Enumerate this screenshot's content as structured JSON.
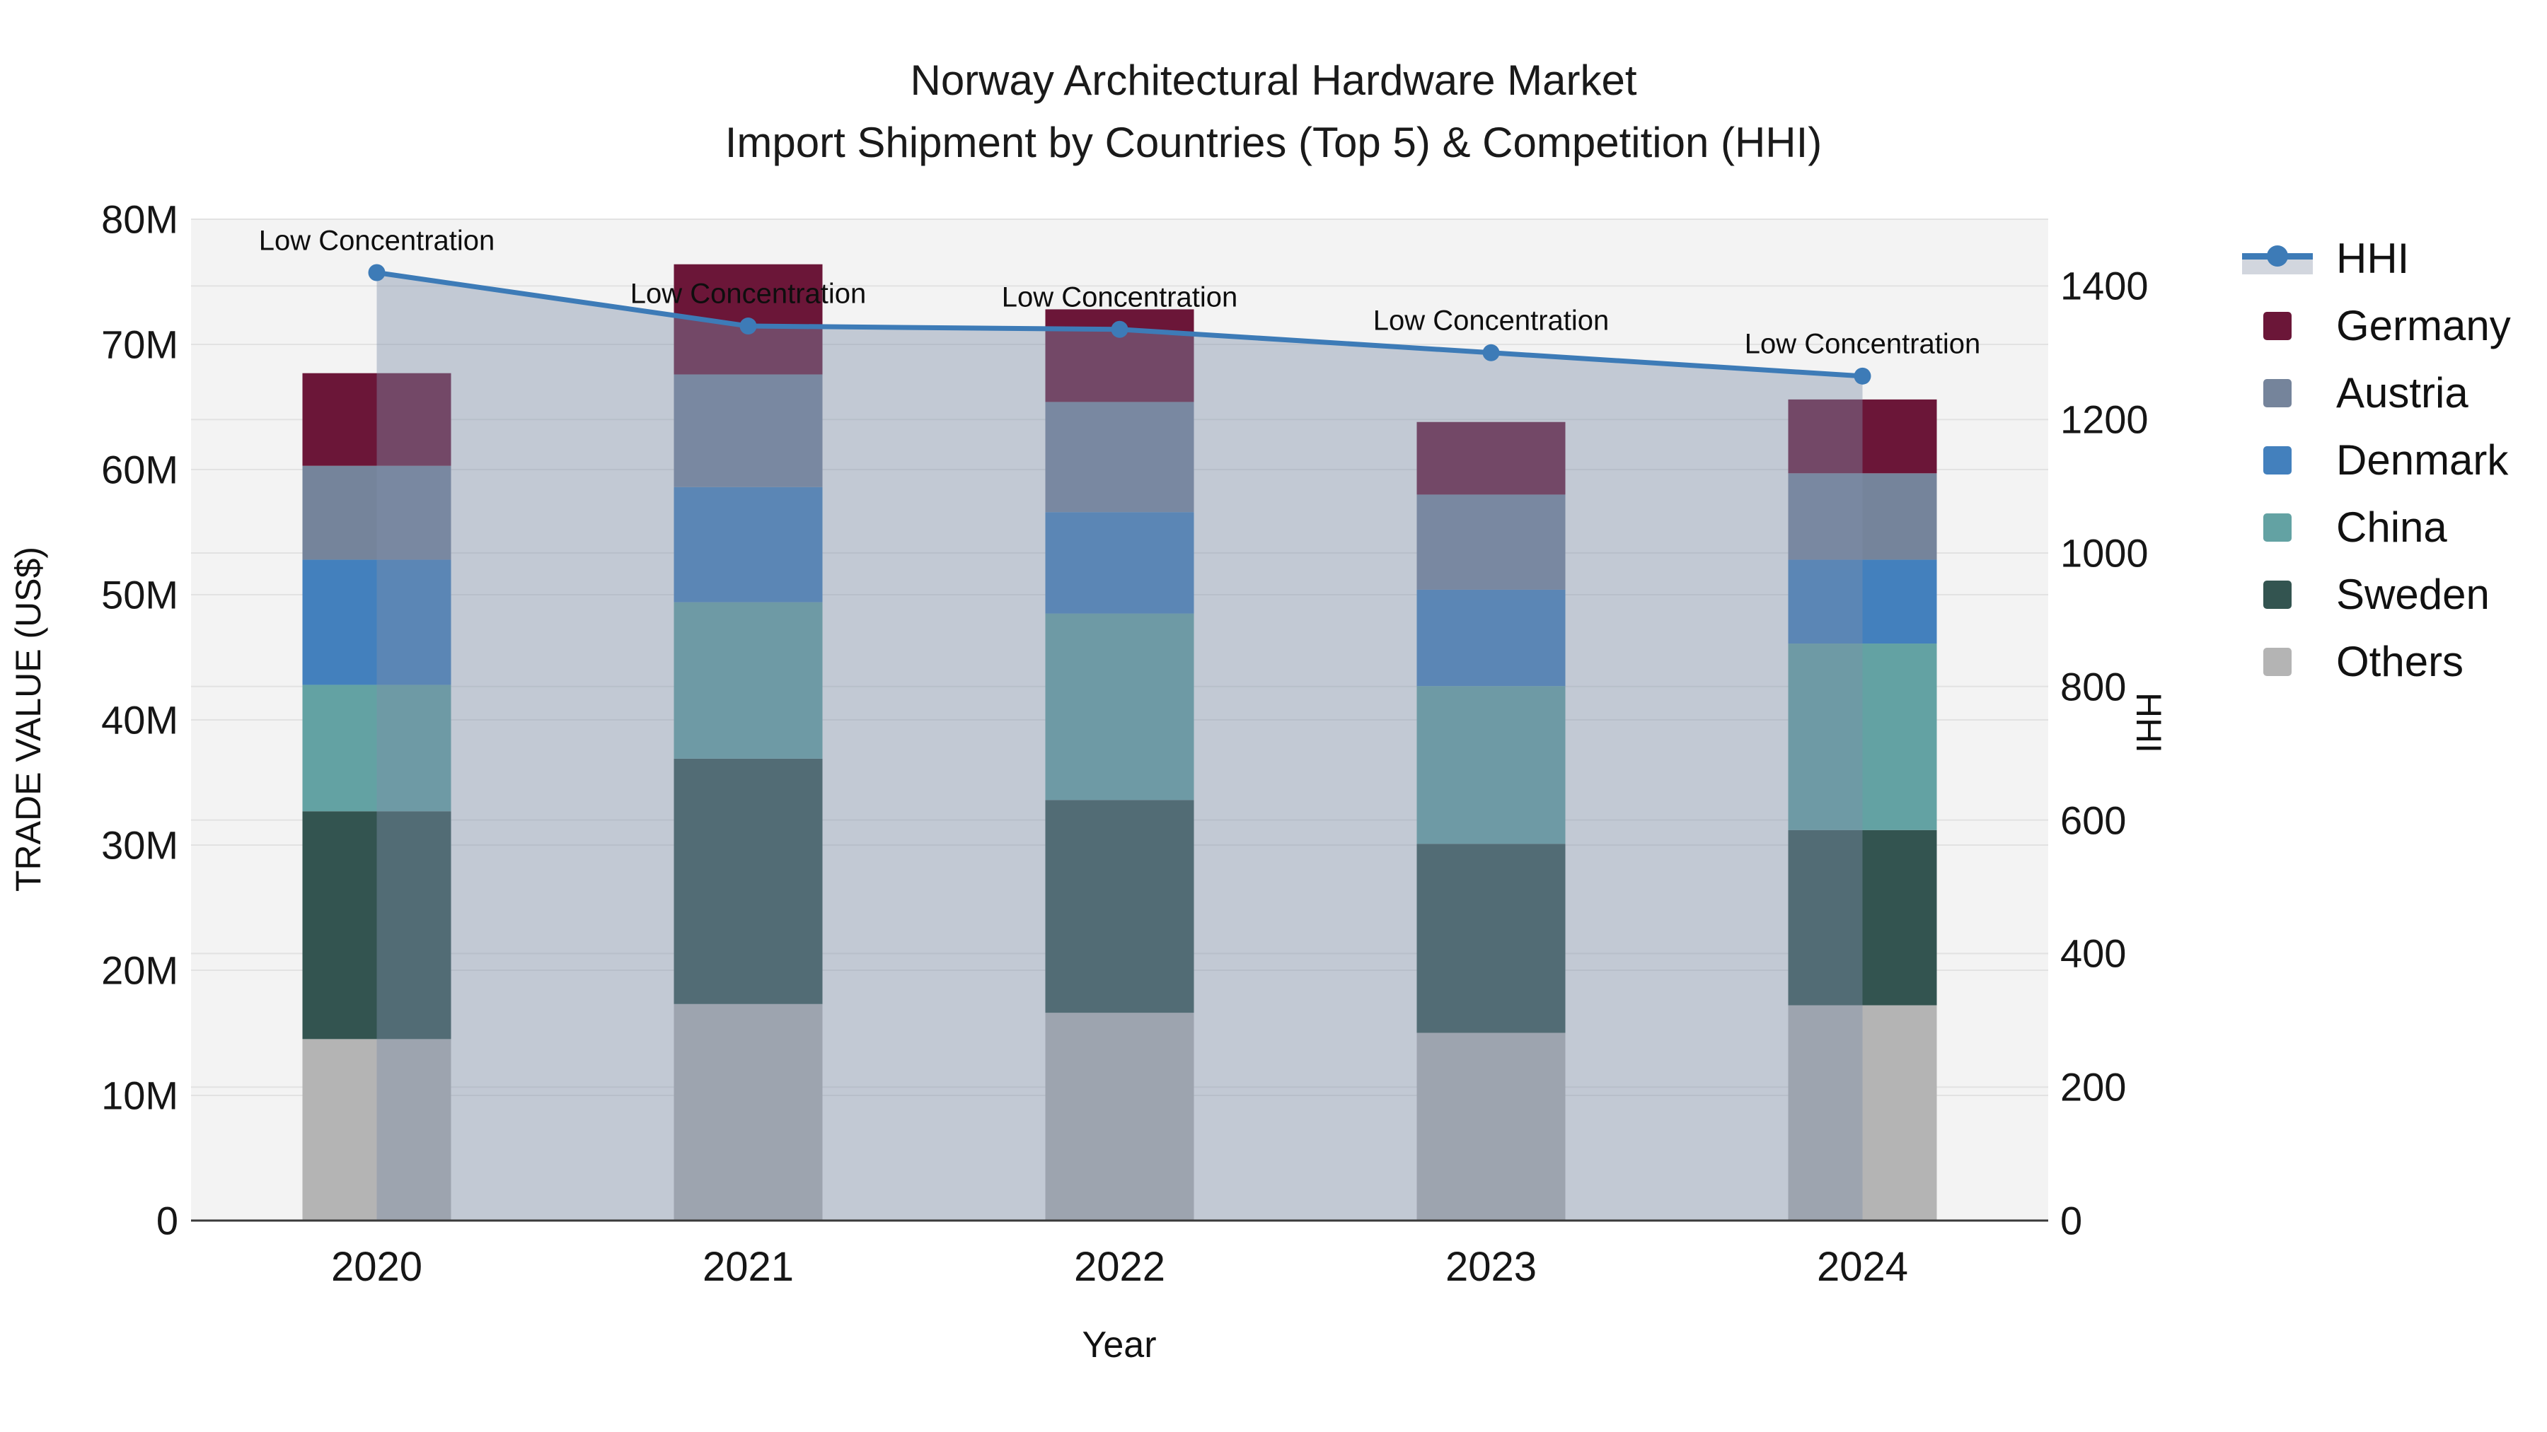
{
  "title": {
    "line1": "Norway Architectural Hardware Market",
    "line2": "Import Shipment by Countries (Top 5) & Competition (HHI)"
  },
  "axes": {
    "y_left": {
      "title": "TRADE VALUE (US$)",
      "ticks": [
        "0",
        "10M",
        "20M",
        "30M",
        "40M",
        "50M",
        "60M",
        "70M",
        "80M"
      ],
      "range": [
        0,
        80
      ]
    },
    "y_right": {
      "title": "HHI",
      "ticks": [
        "0",
        "200",
        "400",
        "600",
        "800",
        "1000",
        "1200",
        "1400"
      ],
      "range": [
        0,
        1500
      ]
    },
    "x": {
      "title": "Year"
    }
  },
  "chart_data": {
    "type": "stacked-bar+line",
    "categories": [
      "2020",
      "2021",
      "2022",
      "2023",
      "2024"
    ],
    "value_unit": "M US$ (trade value, left axis)",
    "series": [
      {
        "name": "Others",
        "values": [
          14.5,
          17.3,
          16.6,
          15.0,
          17.2
        ]
      },
      {
        "name": "Sweden",
        "values": [
          18.2,
          19.6,
          17.0,
          15.1,
          14.0
        ]
      },
      {
        "name": "China",
        "values": [
          10.1,
          12.5,
          14.9,
          12.6,
          14.9
        ]
      },
      {
        "name": "Denmark",
        "values": [
          10.0,
          9.2,
          8.1,
          7.7,
          6.7
        ]
      },
      {
        "name": "Austria",
        "values": [
          7.5,
          9.0,
          8.8,
          7.6,
          6.9
        ]
      },
      {
        "name": "Germany",
        "values": [
          7.4,
          8.8,
          7.4,
          5.8,
          5.9
        ]
      }
    ],
    "totals": [
      67.7,
      76.4,
      72.8,
      63.8,
      65.6
    ],
    "line_series": {
      "name": "HHI",
      "axis": "right",
      "values": [
        1420,
        1340,
        1335,
        1300,
        1265
      ]
    },
    "annotations": [
      "Low Concentration",
      "Low Concentration",
      "Low Concentration",
      "Low Concentration",
      "Low Concentration"
    ],
    "ylim_left": [
      0,
      80
    ],
    "ylim_right": [
      0,
      1500
    ],
    "grid": "on",
    "legend_position": "right"
  },
  "legend": {
    "items": [
      {
        "label": "HHI",
        "swatch": "line",
        "color_key": "hhi_line"
      },
      {
        "label": "Germany",
        "swatch": "square",
        "color_key": "germany"
      },
      {
        "label": "Austria",
        "swatch": "square",
        "color_key": "austria"
      },
      {
        "label": "Denmark",
        "swatch": "square",
        "color_key": "denmark"
      },
      {
        "label": "China",
        "swatch": "square",
        "color_key": "china"
      },
      {
        "label": "Sweden",
        "swatch": "square",
        "color_key": "sweden"
      },
      {
        "label": "Others",
        "swatch": "square",
        "color_key": "others"
      }
    ]
  },
  "colors": {
    "germany": "#6b1638",
    "austria": "#75849b",
    "denmark": "#4380bd",
    "china": "#63a2a3",
    "sweden": "#335450",
    "others": "#b4b4b4",
    "hhi_line": "#3d7bb7",
    "hhi_fill": "rgba(127,143,170,0.42)",
    "hhi_band_sample": "#d2d6de",
    "plot_bg": "#f3f3f3",
    "grid_line": "#e2e2e2",
    "axis_line": "#3a3a3a",
    "text": "#111111"
  }
}
